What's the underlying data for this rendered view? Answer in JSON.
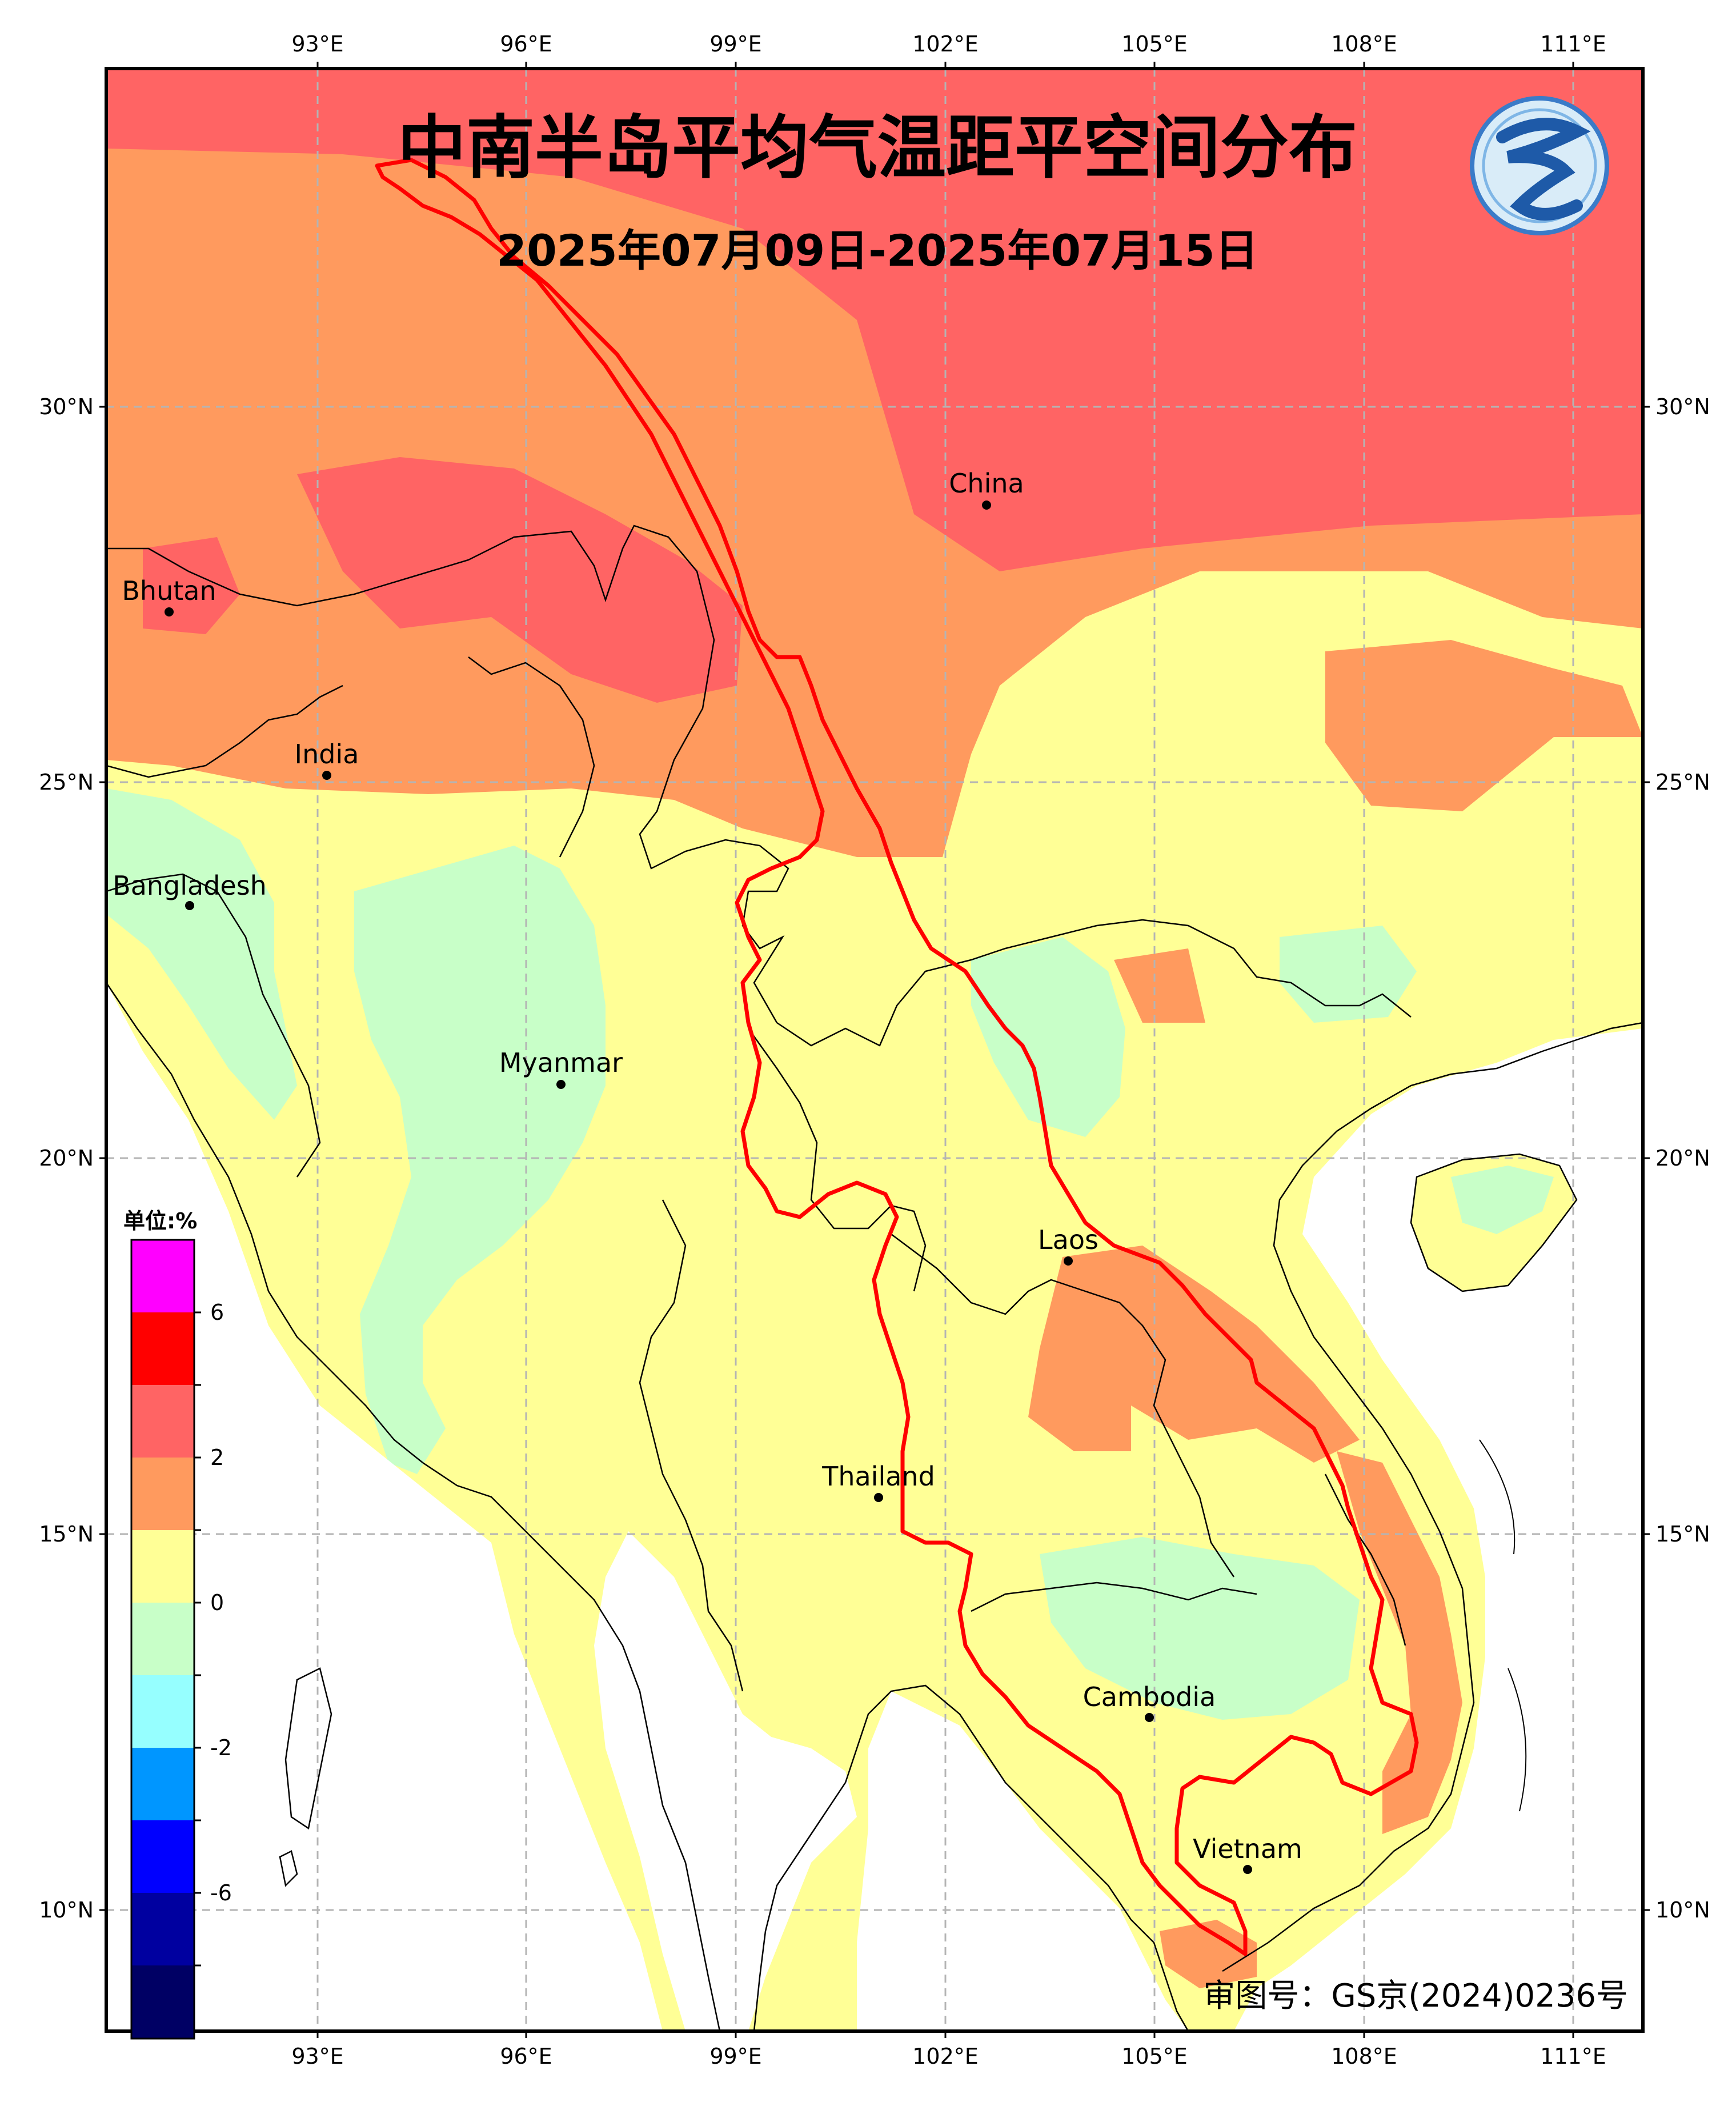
{
  "title": "中南半岛平均气温距平空间分布",
  "subtitle": "2025年07月09日-2025年07月15日",
  "approval_number": "审图号：GS京(2024)0236号",
  "logo": {
    "name": "cma-logo-icon",
    "lettering": "气"
  },
  "axes": {
    "lon_labels": [
      "93°E",
      "96°E",
      "99°E",
      "102°E",
      "105°E",
      "108°E",
      "111°E"
    ],
    "lat_labels": [
      "30°N",
      "25°N",
      "20°N",
      "15°N",
      "10°N"
    ],
    "grid": "dashed"
  },
  "places": [
    {
      "id": "china",
      "label": "China"
    },
    {
      "id": "bhutan",
      "label": "Bhutan"
    },
    {
      "id": "india",
      "label": "India"
    },
    {
      "id": "bangladesh",
      "label": "Bangladesh"
    },
    {
      "id": "myanmar",
      "label": "Myanmar"
    },
    {
      "id": "laos",
      "label": "Laos"
    },
    {
      "id": "thailand",
      "label": "Thailand"
    },
    {
      "id": "cambodia",
      "label": "Cambodia"
    },
    {
      "id": "vietnam",
      "label": "Vietnam"
    }
  ],
  "legend": {
    "unit_label": "单位:%",
    "tick_labels": [
      "6",
      "2",
      "0",
      "-2",
      "-6"
    ],
    "colors_top_to_bottom": [
      "#ff00ff",
      "#ff0000",
      "#ff6464",
      "#ff9a5e",
      "#ffff96",
      "#c8ffc8",
      "#96ffff",
      "#0096ff",
      "#0000ff",
      "#0000a0",
      "#000064"
    ]
  },
  "colors": {
    "boundary_highlight": "#ff0000",
    "anomaly_high": "#ff6464",
    "anomaly_mid": "#ff9a5e",
    "anomaly_low": "#ffff96",
    "anomaly_neg": "#c8ffc8"
  }
}
